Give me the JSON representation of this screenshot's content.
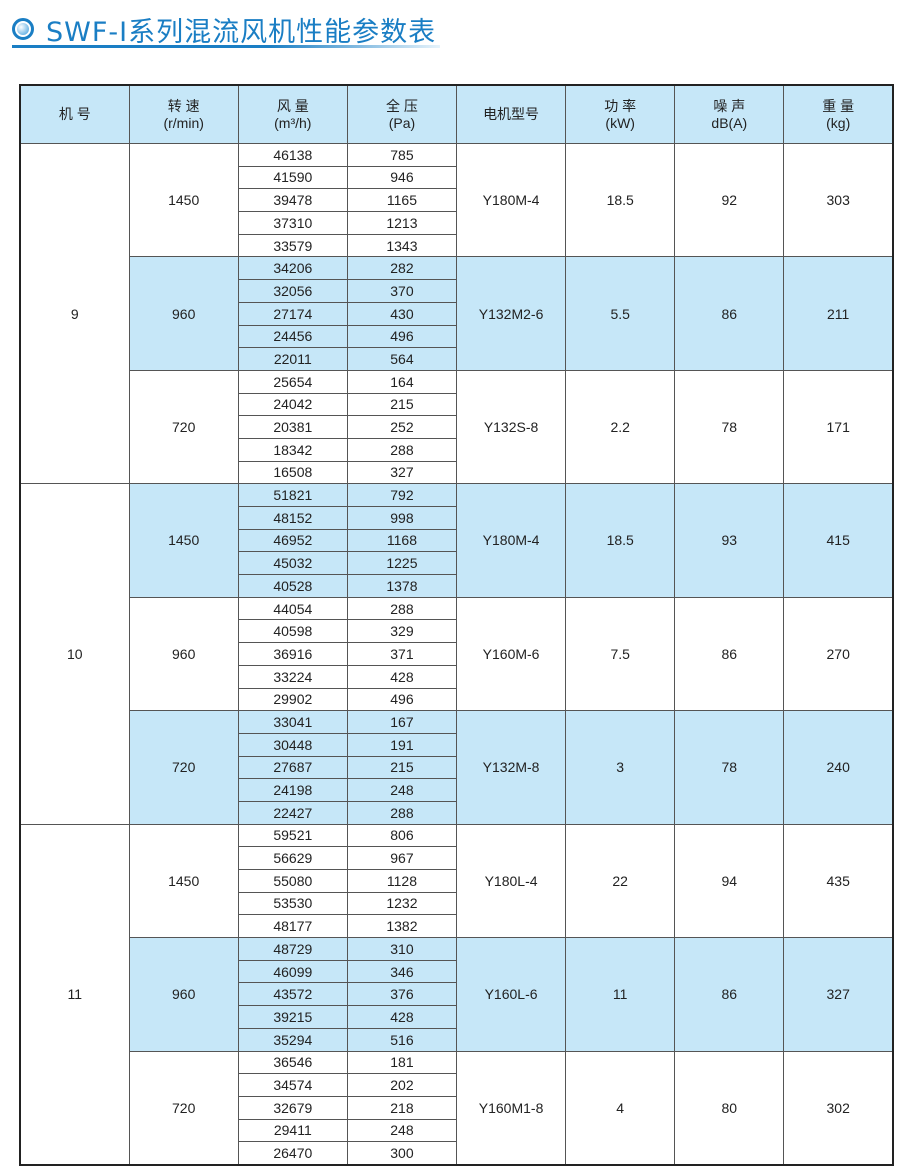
{
  "title": "SWF-Ⅰ系列混流风机性能参数表",
  "headers": [
    {
      "l1": "机 号",
      "l2": ""
    },
    {
      "l1": "转 速",
      "l2": "(r/min)"
    },
    {
      "l1": "风 量",
      "l2": "(m³/h)"
    },
    {
      "l1": "全 压",
      "l2": "(Pa)"
    },
    {
      "l1": "电机型号",
      "l2": ""
    },
    {
      "l1": "功 率",
      "l2": "(kW)"
    },
    {
      "l1": "噪 声",
      "l2": "dB(A)"
    },
    {
      "l1": "重 量",
      "l2": "(kg)"
    }
  ],
  "colors": {
    "header_bg": "#c6e7f8",
    "shaded_row": "#c6e7f8",
    "title": "#1a7ec4"
  },
  "machines": [
    {
      "no": "9",
      "speeds": [
        {
          "rpm": "1450",
          "motor": "Y180M-4",
          "power": "18.5",
          "noise": "92",
          "weight": "303",
          "flow": [
            "46138",
            "41590",
            "39478",
            "37310",
            "33579"
          ],
          "pressure": [
            "785",
            "946",
            "1165",
            "1213",
            "1343"
          ]
        },
        {
          "rpm": "960",
          "motor": "Y132M2-6",
          "power": "5.5",
          "noise": "86",
          "weight": "211",
          "flow": [
            "34206",
            "32056",
            "27174",
            "24456",
            "22011"
          ],
          "pressure": [
            "282",
            "370",
            "430",
            "496",
            "564"
          ]
        },
        {
          "rpm": "720",
          "motor": "Y132S-8",
          "power": "2.2",
          "noise": "78",
          "weight": "171",
          "flow": [
            "25654",
            "24042",
            "20381",
            "18342",
            "16508"
          ],
          "pressure": [
            "164",
            "215",
            "252",
            "288",
            "327"
          ]
        }
      ]
    },
    {
      "no": "10",
      "speeds": [
        {
          "rpm": "1450",
          "motor": "Y180M-4",
          "power": "18.5",
          "noise": "93",
          "weight": "415",
          "flow": [
            "51821",
            "48152",
            "46952",
            "45032",
            "40528"
          ],
          "pressure": [
            "792",
            "998",
            "1168",
            "1225",
            "1378"
          ]
        },
        {
          "rpm": "960",
          "motor": "Y160M-6",
          "power": "7.5",
          "noise": "86",
          "weight": "270",
          "flow": [
            "44054",
            "40598",
            "36916",
            "33224",
            "29902"
          ],
          "pressure": [
            "288",
            "329",
            "371",
            "428",
            "496"
          ]
        },
        {
          "rpm": "720",
          "motor": "Y132M-8",
          "power": "3",
          "noise": "78",
          "weight": "240",
          "flow": [
            "33041",
            "30448",
            "27687",
            "24198",
            "22427"
          ],
          "pressure": [
            "167",
            "191",
            "215",
            "248",
            "288"
          ]
        }
      ]
    },
    {
      "no": "11",
      "speeds": [
        {
          "rpm": "1450",
          "motor": "Y180L-4",
          "power": "22",
          "noise": "94",
          "weight": "435",
          "flow": [
            "59521",
            "56629",
            "55080",
            "53530",
            "48177"
          ],
          "pressure": [
            "806",
            "967",
            "1128",
            "1232",
            "1382"
          ]
        },
        {
          "rpm": "960",
          "motor": "Y160L-6",
          "power": "11",
          "noise": "86",
          "weight": "327",
          "flow": [
            "48729",
            "46099",
            "43572",
            "39215",
            "35294"
          ],
          "pressure": [
            "310",
            "346",
            "376",
            "428",
            "516"
          ]
        },
        {
          "rpm": "720",
          "motor": "Y160M1-8",
          "power": "4",
          "noise": "80",
          "weight": "302",
          "flow": [
            "36546",
            "34574",
            "32679",
            "29411",
            "26470"
          ],
          "pressure": [
            "181",
            "202",
            "218",
            "248",
            "300"
          ]
        }
      ]
    }
  ]
}
